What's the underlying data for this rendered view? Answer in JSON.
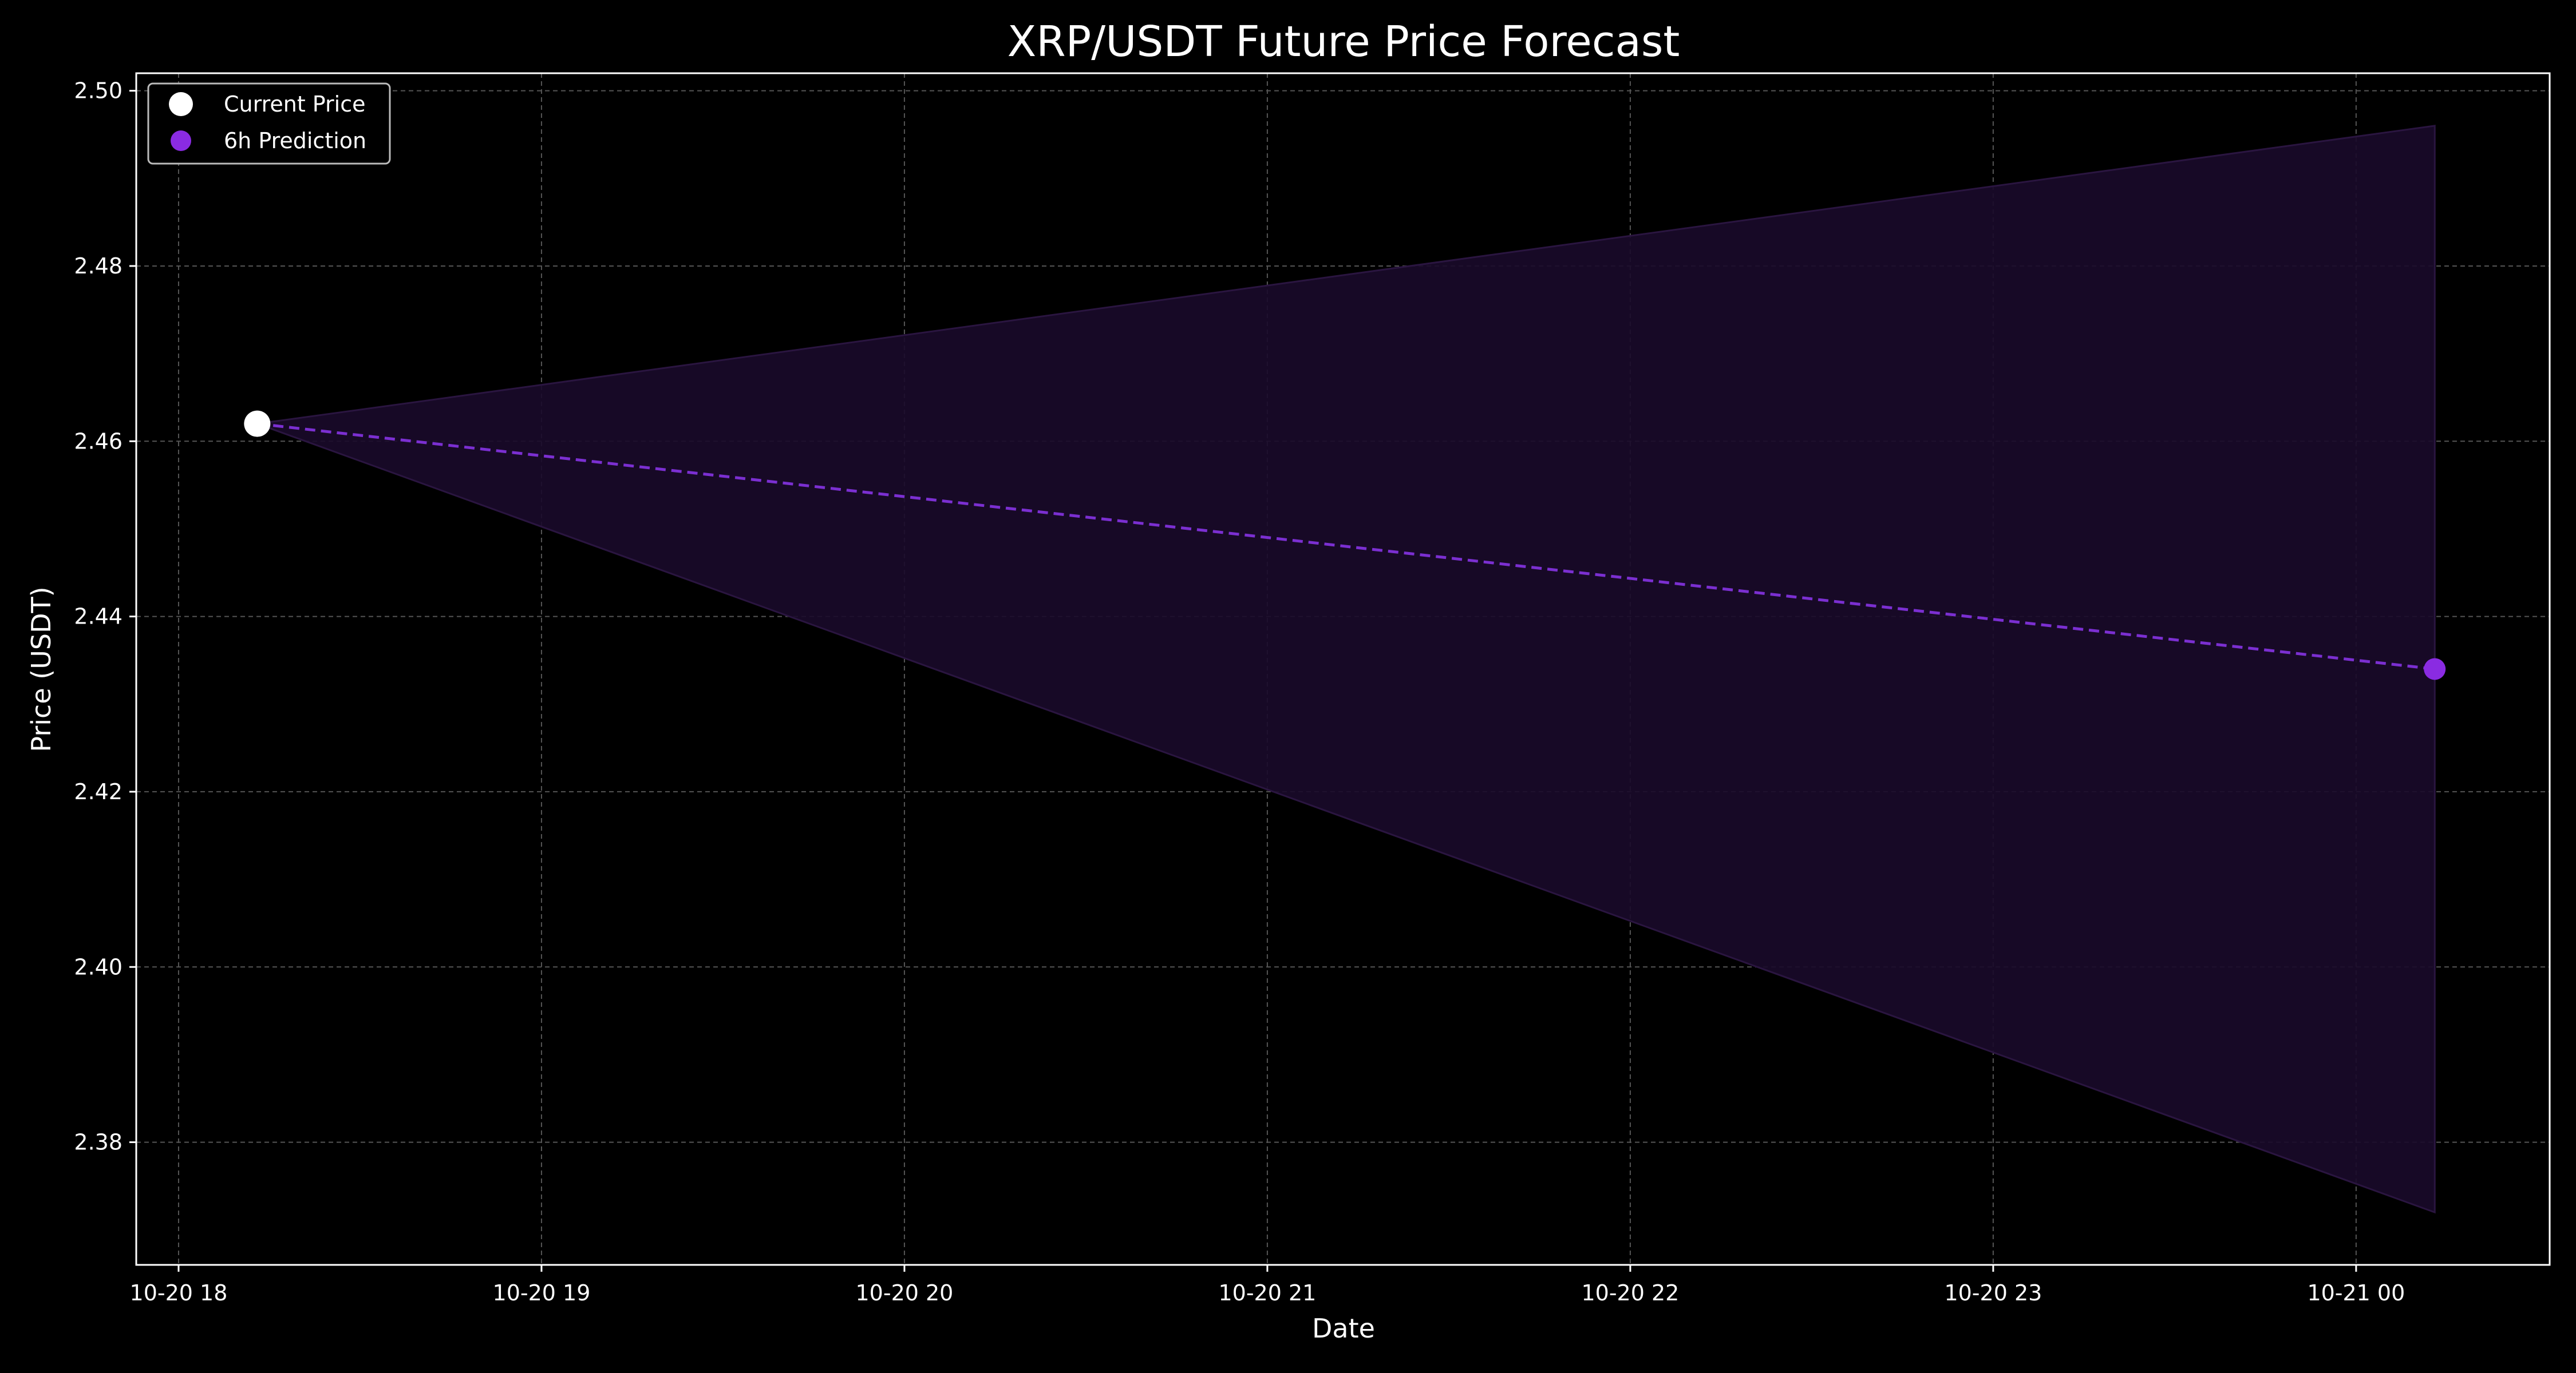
{
  "chart_data": {
    "type": "line",
    "title": "XRP/USDT Future Price Forecast",
    "xlabel": "Date",
    "ylabel": "Price (USDT)",
    "x_ticks": [
      "10-20 18",
      "10-20 19",
      "10-20 20",
      "10-20 21",
      "10-20 22",
      "10-20 23",
      "10-21 00"
    ],
    "y_ticks": [
      "2.38",
      "2.40",
      "2.42",
      "2.44",
      "2.46",
      "2.48",
      "2.50"
    ],
    "xlim": [
      "2024-10-20 17:53",
      "2024-10-21 00:32"
    ],
    "ylim": [
      2.366,
      2.502
    ],
    "grid": true,
    "legend_position": "top-left",
    "series": [
      {
        "name": "Current Price",
        "kind": "point",
        "color": "#ffffff",
        "points": [
          {
            "x": "2024-10-20 18:13",
            "y": 2.462
          }
        ]
      },
      {
        "name": "6h Prediction",
        "kind": "point",
        "color": "#8a2be2",
        "points": [
          {
            "x": "2024-10-21 00:13",
            "y": 2.434
          }
        ]
      },
      {
        "kind": "dashed-line",
        "color": "#7b2fd1",
        "points": [
          {
            "x": "2024-10-20 18:13",
            "y": 2.462
          },
          {
            "x": "2024-10-21 00:13",
            "y": 2.434
          }
        ]
      }
    ],
    "confidence_band": {
      "color": "#1a0a2a",
      "x": [
        "2024-10-20 18:13",
        "2024-10-21 00:13"
      ],
      "upper": [
        2.462,
        2.496
      ],
      "lower": [
        2.462,
        2.372
      ]
    }
  }
}
